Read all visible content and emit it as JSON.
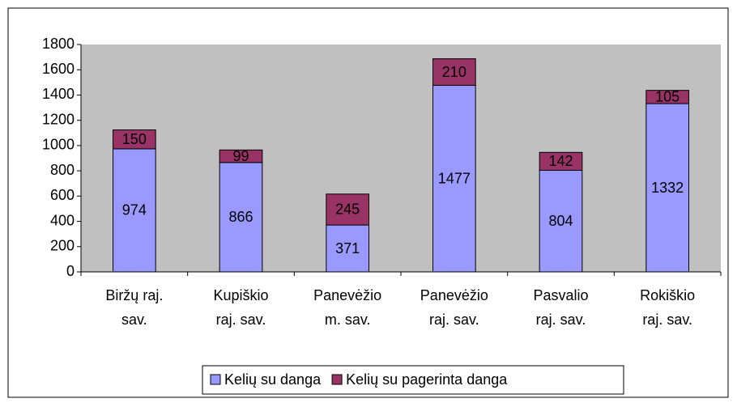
{
  "chart_data": {
    "type": "stacked_bar",
    "categories": [
      "Biržų raj. sav.",
      "Kupiškio raj. sav.",
      "Panevėžio m. sav.",
      "Panevėžio raj. sav.",
      "Pasvalio raj. sav.",
      "Rokiškio raj. sav."
    ],
    "series": [
      {
        "name": "Kelių su danga",
        "color": "#9999ff",
        "values": [
          974,
          866,
          371,
          1477,
          804,
          1332
        ]
      },
      {
        "name": "Kelių su pagerinta danga",
        "color": "#993366",
        "values": [
          150,
          99,
          245,
          210,
          142,
          105
        ]
      }
    ],
    "ylim": [
      0,
      1800
    ],
    "yticks": [
      0,
      200,
      400,
      600,
      800,
      1000,
      1200,
      1400,
      1600,
      1800
    ],
    "grid": false,
    "legend": "bottom"
  }
}
